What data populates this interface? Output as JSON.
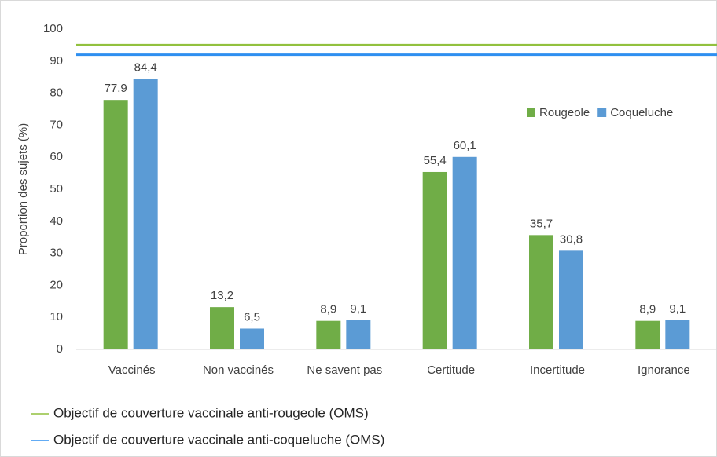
{
  "chart_data": {
    "type": "bar",
    "ylabel": "Proportion des sujets (%)",
    "categories": [
      "Vaccinés",
      "Non vaccinés",
      "Ne savent pas",
      "Certitude",
      "Incertitude",
      "Ignorance"
    ],
    "series": [
      {
        "name": "Rougeole",
        "color": "#70ad47",
        "values": [
          77.9,
          13.2,
          8.9,
          55.4,
          35.7,
          8.9
        ],
        "value_labels": [
          "77,9",
          "13,2",
          "8,9",
          "55,4",
          "35,7",
          "8,9"
        ]
      },
      {
        "name": "Coqueluche",
        "color": "#5b9bd5",
        "values": [
          84.4,
          6.5,
          9.1,
          60.1,
          30.8,
          9.1
        ],
        "value_labels": [
          "84,4",
          "6,5",
          "9,1",
          "60,1",
          "30,8",
          "9,1"
        ]
      }
    ],
    "reference_lines": [
      {
        "name": "Objectif de couverture vaccinale anti-rougeole (OMS)",
        "value": 95,
        "color": "#92c13e"
      },
      {
        "name": "Objectif de couverture vaccinale anti-coqueluche (OMS)",
        "value": 92,
        "color": "#2e8ff0"
      }
    ],
    "ylim": [
      0,
      100
    ],
    "yticks": [
      0,
      10,
      20,
      30,
      40,
      50,
      60,
      70,
      80,
      90,
      100
    ],
    "grid": false,
    "legend": "upper right"
  }
}
